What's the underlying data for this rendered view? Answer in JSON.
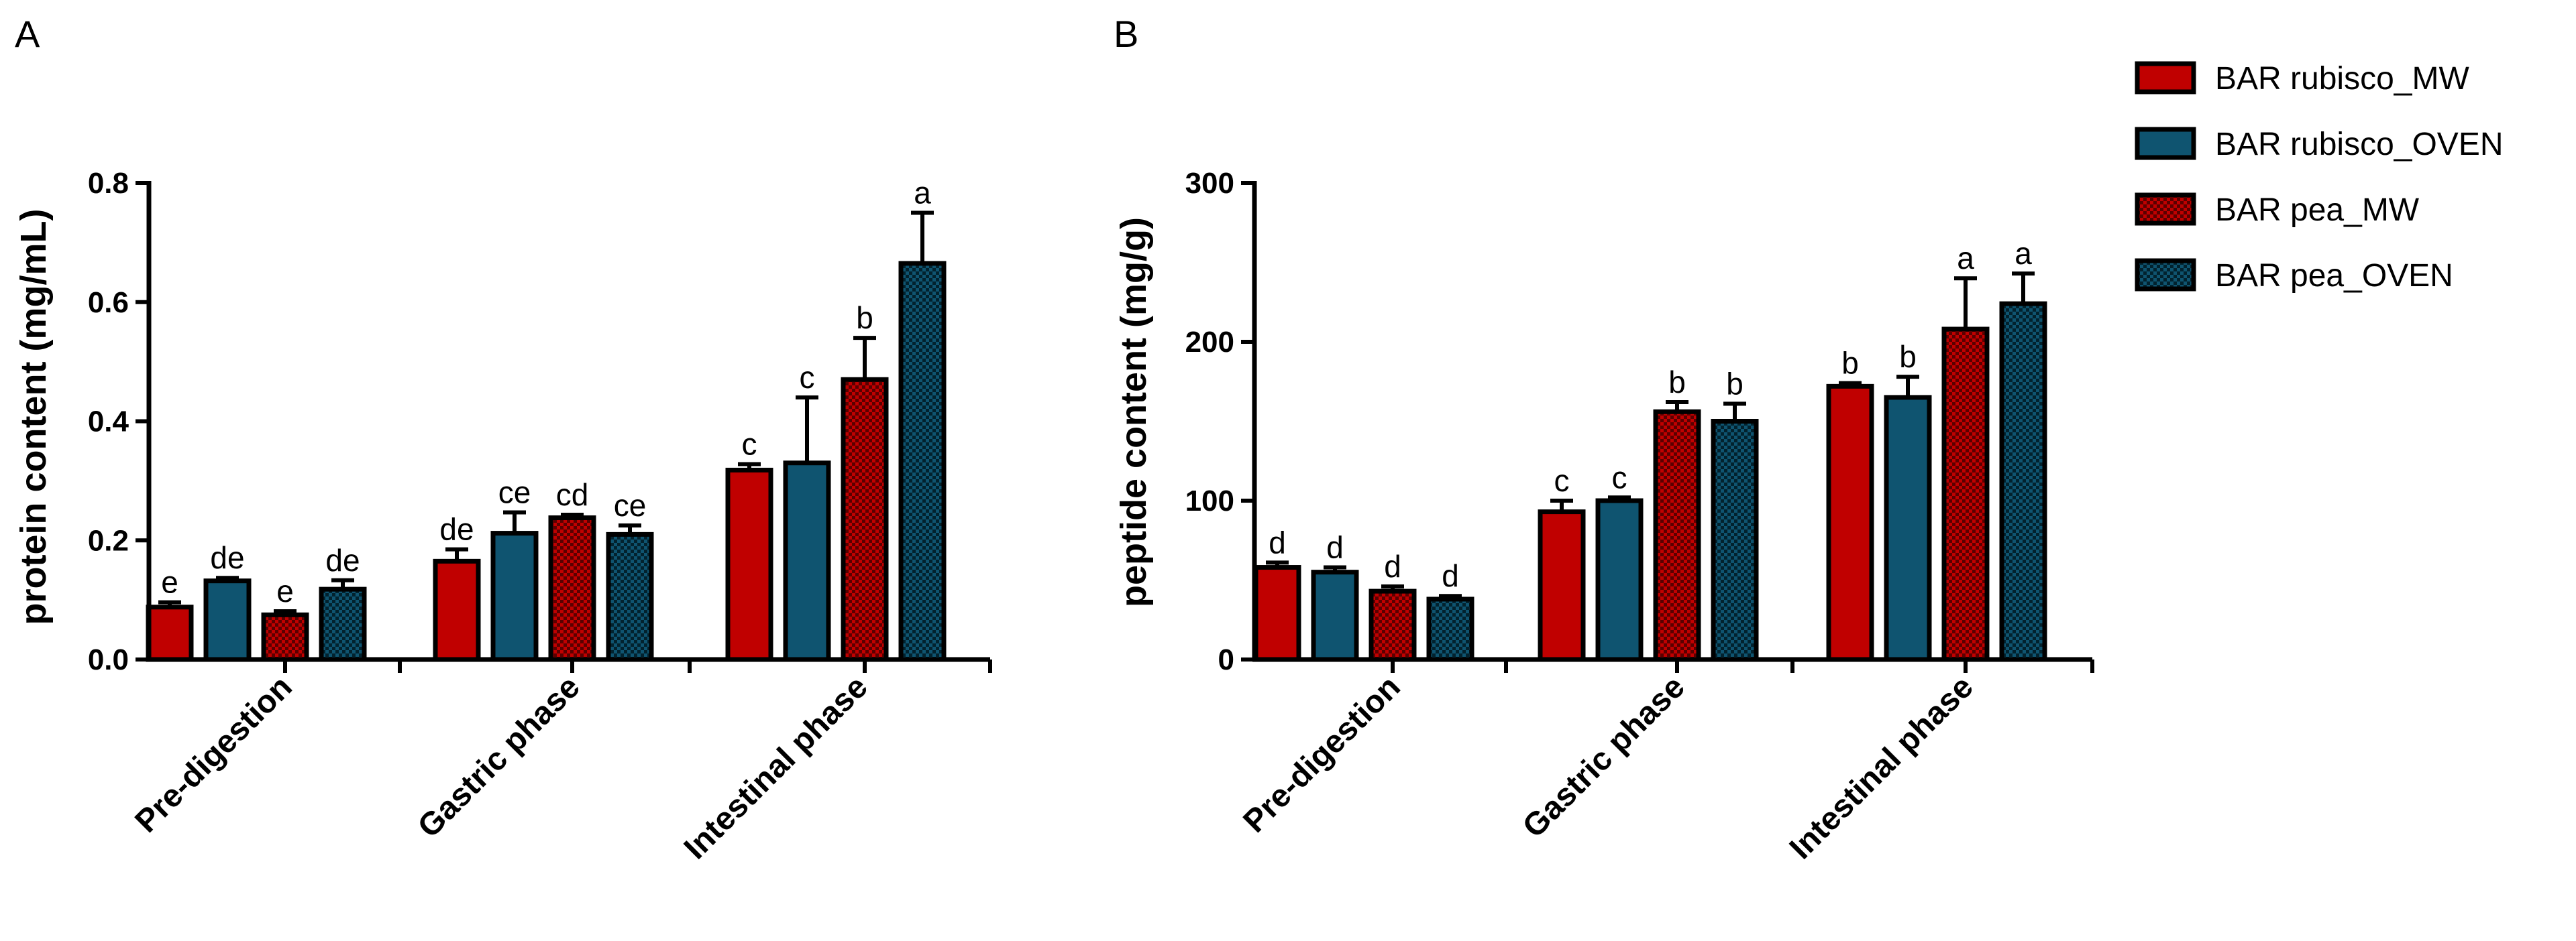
{
  "chart_data": [
    {
      "type": "bar",
      "panel_label": "A",
      "ylabel": "protein content (mg/mL)",
      "xlabel": "",
      "ylim": [
        0,
        0.8
      ],
      "yticks": [
        0.0,
        0.2,
        0.4,
        0.6,
        0.8
      ],
      "ytick_labels": [
        "0.0",
        "0.2",
        "0.4",
        "0.6",
        "0.8"
      ],
      "categories": [
        "Pre-digestion",
        "Gastric phase",
        "Intestinal phase"
      ],
      "series": [
        {
          "name": "BAR rubisco_MW",
          "values": [
            0.088,
            0.165,
            0.318
          ],
          "errors": [
            0.008,
            0.02,
            0.01
          ],
          "labels": [
            "e",
            "de",
            "c"
          ]
        },
        {
          "name": "BAR rubisco_OVEN",
          "values": [
            0.132,
            0.212,
            0.33
          ],
          "errors": [
            0.005,
            0.035,
            0.11
          ],
          "labels": [
            "de",
            "ce",
            "c"
          ]
        },
        {
          "name": "BAR pea_MW",
          "values": [
            0.075,
            0.238,
            0.47
          ],
          "errors": [
            0.006,
            0.005,
            0.07
          ],
          "labels": [
            "e",
            "cd",
            "b"
          ]
        },
        {
          "name": "BAR pea_OVEN",
          "values": [
            0.118,
            0.21,
            0.665
          ],
          "errors": [
            0.015,
            0.015,
            0.085
          ],
          "labels": [
            "de",
            "ce",
            "a"
          ]
        }
      ]
    },
    {
      "type": "bar",
      "panel_label": "B",
      "ylabel": "peptide content (mg/g)",
      "xlabel": "",
      "ylim": [
        0,
        300
      ],
      "yticks": [
        0,
        100,
        200,
        300
      ],
      "ytick_labels": [
        "0",
        "100",
        "200",
        "300"
      ],
      "categories": [
        "Pre-digestion",
        "Gastric phase",
        "Intestinal phase"
      ],
      "series": [
        {
          "name": "BAR rubisco_MW",
          "values": [
            58,
            93,
            172
          ],
          "errors": [
            3,
            7,
            2
          ],
          "labels": [
            "d",
            "c",
            "b"
          ]
        },
        {
          "name": "BAR rubisco_OVEN",
          "values": [
            55,
            100,
            165
          ],
          "errors": [
            3,
            2,
            13
          ],
          "labels": [
            "d",
            "c",
            "b"
          ]
        },
        {
          "name": "BAR pea_MW",
          "values": [
            43,
            156,
            208
          ],
          "errors": [
            3,
            6,
            32
          ],
          "labels": [
            "d",
            "b",
            "a"
          ]
        },
        {
          "name": "BAR pea_OVEN",
          "values": [
            38,
            150,
            224
          ],
          "errors": [
            2,
            11,
            19
          ],
          "labels": [
            "d",
            "b",
            "a"
          ]
        }
      ]
    }
  ],
  "legend": {
    "items": [
      {
        "label": "BAR rubisco_MW",
        "color": "#c00000",
        "pattern": "solid"
      },
      {
        "label": "BAR rubisco_OVEN",
        "color": "#0f5470",
        "pattern": "solid"
      },
      {
        "label": "BAR pea_MW",
        "color": "#c00000",
        "pattern": "checker"
      },
      {
        "label": "BAR pea_OVEN",
        "color": "#0f5470",
        "pattern": "checker"
      }
    ]
  }
}
